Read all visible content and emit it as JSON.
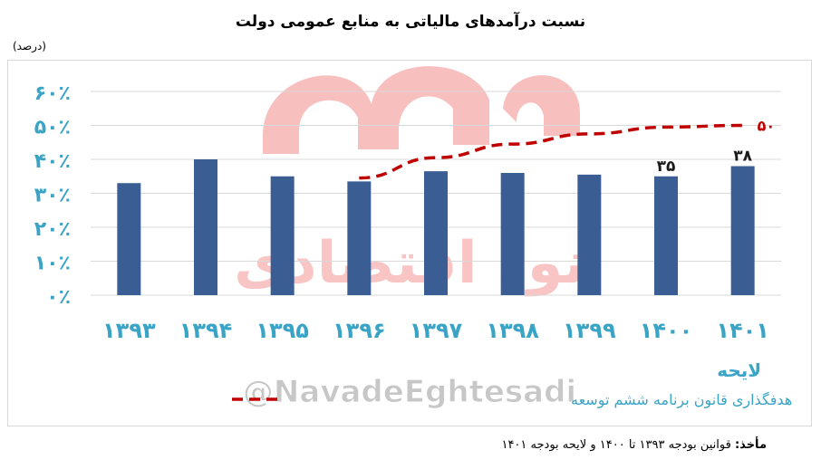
{
  "chart_data": {
    "type": "bar",
    "title": "نسبت درآمدهای مالیاتی به منابع عمومی دولت",
    "unit_label": "(درصد)",
    "categories": [
      "۱۳۹۳",
      "۱۳۹۴",
      "۱۳۹۵",
      "۱۳۹۶",
      "۱۳۹۷",
      "۱۳۹۸",
      "۱۳۹۹",
      "۱۴۰۰",
      "۱۴۰۱"
    ],
    "category_note": "لایحه",
    "values": [
      33,
      40,
      35,
      33.5,
      36.5,
      36,
      35.5,
      35,
      38
    ],
    "data_labels": [
      "",
      "",
      "",
      "",
      "",
      "",
      "",
      "۳۵",
      "۳۸"
    ],
    "target_series": {
      "name": "هدفگذاری قانون برنامه ششم توسعه",
      "start_category": "۱۳۹۶",
      "values": [
        34.5,
        40.5,
        44.5,
        47.5,
        49.5,
        50
      ],
      "end_label": "۵۰"
    },
    "yticks": [
      "۰٪",
      "۱۰٪",
      "۲۰٪",
      "۳۰٪",
      "۴۰٪",
      "۵۰٪",
      "۶۰٪"
    ],
    "ylim": [
      0,
      60
    ],
    "grid": true,
    "colors": {
      "bar": "#3a5e93",
      "target": "#c00000",
      "axis_text": "#3aa4c6",
      "watermark": "#f28b8b"
    }
  },
  "watermark": {
    "brand": "نود اقتصادی",
    "handle": "@NavadeEghtesadi"
  },
  "source": {
    "label": "مأخذ:",
    "text": "قوانین بودجه ۱۳۹۳ تا ۱۴۰۰ و لایحه بودجه ۱۴۰۱"
  }
}
